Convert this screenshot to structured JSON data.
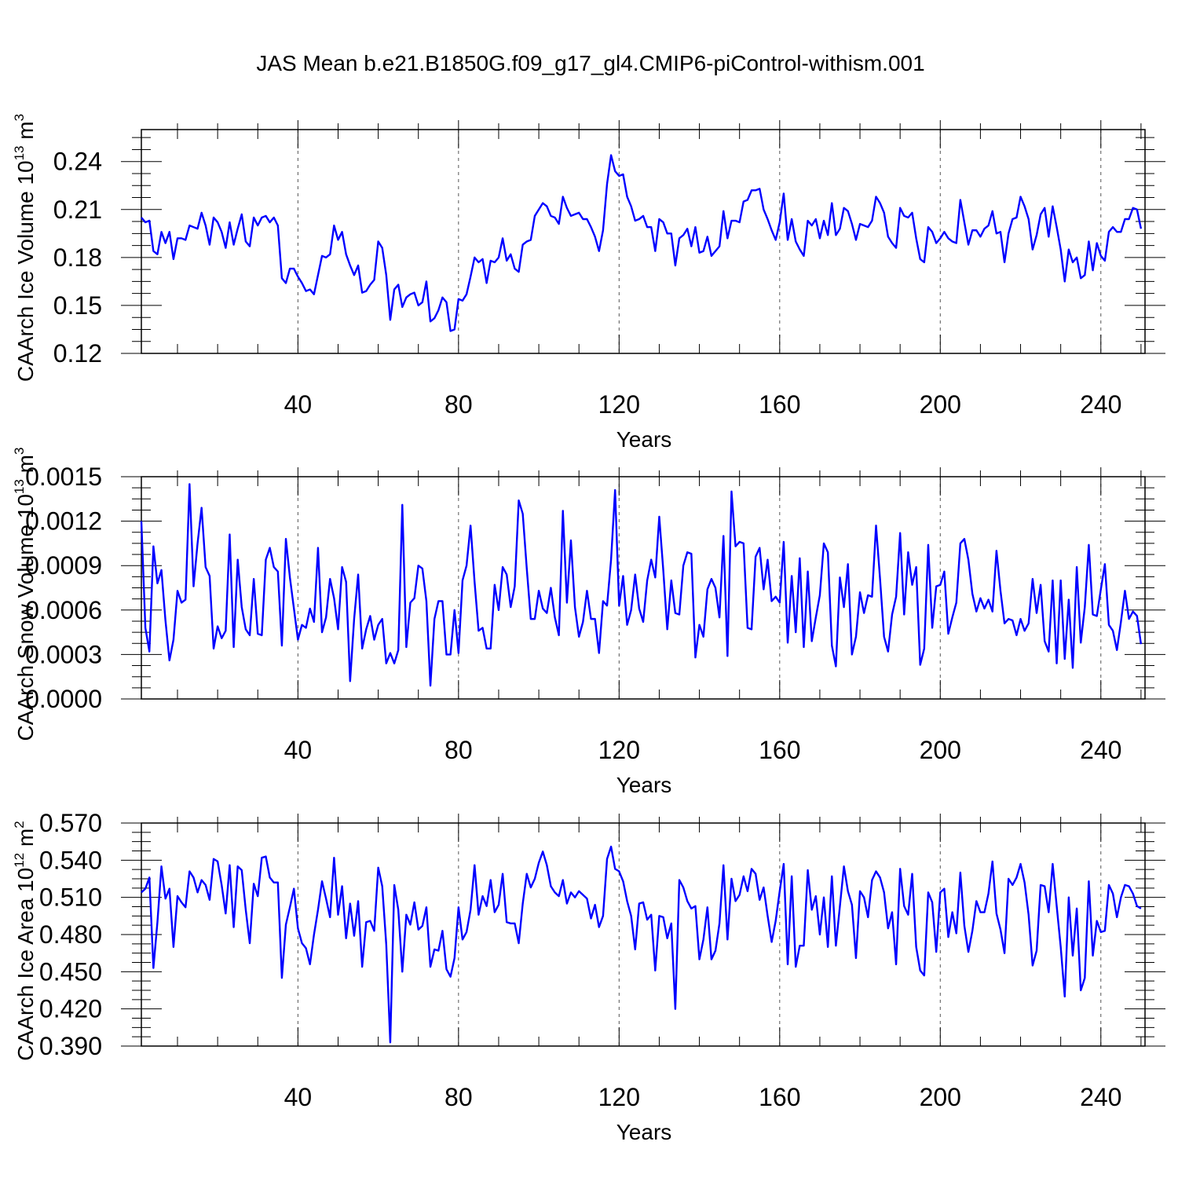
{
  "figure": {
    "title": "JAS Mean b.e21.B1850G.f09_g17_gl4.CMIP6-piControl-withism.001"
  },
  "chart_data": [
    {
      "type": "line",
      "xlabel": "Years",
      "ylabel": {
        "main": "CAArch Ice Volume 10",
        "exp": "13",
        "unit": " m",
        "unit_exp": "3"
      },
      "xlim": [
        1,
        251
      ],
      "xticks": [
        40,
        80,
        120,
        160,
        200,
        240
      ],
      "xtick_labels": [
        "40",
        "80",
        "120",
        "160",
        "200",
        "240"
      ],
      "ylim": [
        0.12,
        0.26
      ],
      "yticks": [
        0.12,
        0.15,
        0.18,
        0.21,
        0.24
      ],
      "ytick_labels": [
        "0.12",
        "0.15",
        "0.18",
        "0.21",
        "0.24"
      ],
      "grid": "vertical dashed at major x ticks",
      "color": "#0000ff",
      "series": [
        {
          "values": [
            0.205,
            0.202,
            0.203,
            0.184,
            0.182,
            0.196,
            0.189,
            0.196,
            0.179,
            0.192,
            0.192,
            0.191,
            0.2,
            0.199,
            0.198,
            0.208,
            0.2,
            0.188,
            0.205,
            0.202,
            0.196,
            0.186,
            0.202,
            0.188,
            0.198,
            0.207,
            0.19,
            0.187,
            0.205,
            0.2,
            0.205,
            0.206,
            0.202,
            0.205,
            0.2,
            0.167,
            0.164,
            0.173,
            0.173,
            0.168,
            0.164,
            0.159,
            0.16,
            0.157,
            0.169,
            0.181,
            0.18,
            0.182,
            0.2,
            0.191,
            0.196,
            0.182,
            0.175,
            0.169,
            0.175,
            0.158,
            0.159,
            0.163,
            0.166,
            0.19,
            0.186,
            0.169,
            0.141,
            0.16,
            0.163,
            0.149,
            0.155,
            0.157,
            0.158,
            0.15,
            0.152,
            0.165,
            0.14,
            0.142,
            0.147,
            0.155,
            0.152,
            0.134,
            0.135,
            0.154,
            0.153,
            0.157,
            0.168,
            0.18,
            0.177,
            0.179,
            0.164,
            0.178,
            0.177,
            0.18,
            0.192,
            0.178,
            0.182,
            0.173,
            0.171,
            0.188,
            0.19,
            0.191,
            0.206,
            0.21,
            0.214,
            0.212,
            0.206,
            0.205,
            0.201,
            0.218,
            0.211,
            0.206,
            0.207,
            0.208,
            0.204,
            0.204,
            0.199,
            0.193,
            0.184,
            0.197,
            0.226,
            0.244,
            0.234,
            0.231,
            0.232,
            0.218,
            0.212,
            0.203,
            0.204,
            0.206,
            0.199,
            0.199,
            0.184,
            0.204,
            0.202,
            0.195,
            0.195,
            0.175,
            0.192,
            0.194,
            0.198,
            0.187,
            0.199,
            0.183,
            0.184,
            0.193,
            0.181,
            0.184,
            0.187,
            0.209,
            0.192,
            0.203,
            0.203,
            0.202,
            0.215,
            0.216,
            0.222,
            0.222,
            0.223,
            0.21,
            0.204,
            0.197,
            0.191,
            0.202,
            0.22,
            0.191,
            0.204,
            0.19,
            0.185,
            0.181,
            0.203,
            0.2,
            0.204,
            0.192,
            0.203,
            0.194,
            0.214,
            0.194,
            0.198,
            0.211,
            0.209,
            0.201,
            0.191,
            0.201,
            0.2,
            0.199,
            0.203,
            0.218,
            0.214,
            0.208,
            0.193,
            0.189,
            0.186,
            0.211,
            0.206,
            0.205,
            0.208,
            0.192,
            0.179,
            0.177,
            0.199,
            0.196,
            0.189,
            0.192,
            0.196,
            0.192,
            0.19,
            0.189,
            0.216,
            0.202,
            0.188,
            0.197,
            0.197,
            0.193,
            0.198,
            0.2,
            0.209,
            0.195,
            0.196,
            0.177,
            0.195,
            0.204,
            0.205,
            0.218,
            0.212,
            0.204,
            0.185,
            0.194,
            0.207,
            0.211,
            0.193,
            0.212,
            0.199,
            0.185,
            0.165,
            0.185,
            0.177,
            0.18,
            0.167,
            0.169,
            0.19,
            0.172,
            0.189,
            0.181,
            0.178,
            0.196,
            0.199,
            0.196,
            0.196,
            0.204,
            0.204,
            0.211,
            0.21,
            0.198
          ]
        }
      ]
    },
    {
      "type": "line",
      "xlabel": "Years",
      "ylabel": {
        "main": "CAArch Snow Volume 10",
        "exp": "13",
        "unit": " m",
        "unit_exp": "3"
      },
      "xlim": [
        1,
        251
      ],
      "xticks": [
        40,
        80,
        120,
        160,
        200,
        240
      ],
      "xtick_labels": [
        "40",
        "80",
        "120",
        "160",
        "200",
        "240"
      ],
      "ylim": [
        0.0,
        0.0015
      ],
      "yticks": [
        0.0,
        0.0003,
        0.0006,
        0.0009,
        0.0012,
        0.0015
      ],
      "ytick_labels": [
        "0.0000",
        "0.0003",
        "0.0006",
        "0.0009",
        "0.0012",
        "0.0015"
      ],
      "grid": "vertical dashed at major x ticks",
      "color": "#0000ff",
      "series": [
        {
          "values": [
            0.0012,
            0.00048,
            0.00032,
            0.00103,
            0.00078,
            0.00087,
            0.00053,
            0.00026,
            0.0004,
            0.00073,
            0.00065,
            0.00067,
            0.00145,
            0.00076,
            0.00105,
            0.00129,
            0.00089,
            0.00083,
            0.00034,
            0.00049,
            0.00041,
            0.00046,
            0.00111,
            0.00035,
            0.00094,
            0.00062,
            0.00047,
            0.00043,
            0.00081,
            0.00044,
            0.00043,
            0.00094,
            0.00102,
            0.00089,
            0.00086,
            0.00036,
            0.00108,
            0.00082,
            0.00061,
            0.0004,
            0.0005,
            0.00048,
            0.00061,
            0.00052,
            0.00102,
            0.00045,
            0.00055,
            0.00081,
            0.00068,
            0.00047,
            0.00089,
            0.00079,
            0.00012,
            0.00054,
            0.00084,
            0.00034,
            0.00047,
            0.00056,
            0.0004,
            0.0005,
            0.00054,
            0.00024,
            0.00031,
            0.00024,
            0.00033,
            0.00131,
            0.00035,
            0.00065,
            0.00068,
            0.0009,
            0.00088,
            0.00066,
            9e-05,
            0.00054,
            0.00066,
            0.00066,
            0.0003,
            0.0003,
            0.0006,
            0.00031,
            0.0008,
            0.0009,
            0.00117,
            0.00079,
            0.00046,
            0.00048,
            0.00034,
            0.00034,
            0.00077,
            0.0006,
            0.00089,
            0.00084,
            0.00062,
            0.00076,
            0.00134,
            0.00125,
            0.00088,
            0.00054,
            0.00054,
            0.00073,
            0.00061,
            0.00058,
            0.00075,
            0.00055,
            0.00043,
            0.00127,
            0.00065,
            0.00107,
            0.00062,
            0.00042,
            0.00052,
            0.00073,
            0.00054,
            0.00054,
            0.00031,
            0.00066,
            0.00063,
            0.00094,
            0.00141,
            0.00063,
            0.00083,
            0.0005,
            0.0006,
            0.00084,
            0.00061,
            0.00052,
            0.0008,
            0.00094,
            0.00082,
            0.00123,
            0.00087,
            0.00047,
            0.0008,
            0.00058,
            0.00057,
            0.0009,
            0.00099,
            0.00098,
            0.00028,
            0.0005,
            0.00042,
            0.00074,
            0.00081,
            0.00075,
            0.00055,
            0.0011,
            0.00029,
            0.0014,
            0.00103,
            0.00106,
            0.00105,
            0.00048,
            0.00047,
            0.00096,
            0.00102,
            0.00074,
            0.00094,
            0.00066,
            0.00069,
            0.00065,
            0.00106,
            0.00038,
            0.00083,
            0.00045,
            0.00095,
            0.00035,
            0.00086,
            0.00039,
            0.00055,
            0.0007,
            0.00105,
            0.00099,
            0.00036,
            0.00022,
            0.00082,
            0.00062,
            0.00091,
            0.0003,
            0.00042,
            0.00072,
            0.00058,
            0.0007,
            0.00069,
            0.00117,
            0.00081,
            0.00042,
            0.00032,
            0.00057,
            0.00069,
            0.00112,
            0.00057,
            0.00099,
            0.00077,
            0.00089,
            0.00023,
            0.00034,
            0.00104,
            0.00048,
            0.00076,
            0.00077,
            0.00086,
            0.00044,
            0.00055,
            0.00065,
            0.00105,
            0.00108,
            0.00094,
            0.00071,
            0.00059,
            0.00068,
            0.00061,
            0.00067,
            0.00059,
            0.001,
            0.00073,
            0.00051,
            0.00054,
            0.00053,
            0.00043,
            0.00054,
            0.00046,
            0.00051,
            0.00081,
            0.00058,
            0.00077,
            0.00039,
            0.00032,
            0.0008,
            0.00024,
            0.0008,
            0.00027,
            0.00067,
            0.00021,
            0.00089,
            0.00038,
            0.00062,
            0.00104,
            0.00057,
            0.00056,
            0.00074,
            0.00091,
            0.0005,
            0.00046,
            0.00033,
            0.00052,
            0.00073,
            0.00054,
            0.00059,
            0.00056,
            0.00037
          ]
        }
      ]
    },
    {
      "type": "line",
      "xlabel": "Years",
      "ylabel": {
        "main": "CAArch Ice Area 10",
        "exp": "12",
        "unit": " m",
        "unit_exp": "2"
      },
      "xlim": [
        1,
        251
      ],
      "xticks": [
        40,
        80,
        120,
        160,
        200,
        240
      ],
      "xtick_labels": [
        "40",
        "80",
        "120",
        "160",
        "200",
        "240"
      ],
      "ylim": [
        0.39,
        0.57
      ],
      "yticks": [
        0.39,
        0.42,
        0.45,
        0.48,
        0.51,
        0.54,
        0.57
      ],
      "ytick_labels": [
        "0.390",
        "0.420",
        "0.450",
        "0.480",
        "0.510",
        "0.540",
        "0.570"
      ],
      "grid": "vertical dashed at major x ticks",
      "color": "#0000ff",
      "series": [
        {
          "values": [
            0.514,
            0.517,
            0.526,
            0.453,
            0.49,
            0.535,
            0.509,
            0.517,
            0.47,
            0.511,
            0.506,
            0.502,
            0.531,
            0.526,
            0.514,
            0.524,
            0.52,
            0.508,
            0.541,
            0.539,
            0.52,
            0.497,
            0.536,
            0.486,
            0.535,
            0.532,
            0.5,
            0.473,
            0.521,
            0.511,
            0.542,
            0.543,
            0.526,
            0.522,
            0.522,
            0.445,
            0.488,
            0.502,
            0.517,
            0.485,
            0.473,
            0.469,
            0.456,
            0.48,
            0.5,
            0.523,
            0.509,
            0.494,
            0.542,
            0.496,
            0.519,
            0.477,
            0.505,
            0.479,
            0.507,
            0.454,
            0.49,
            0.491,
            0.483,
            0.534,
            0.519,
            0.472,
            0.393,
            0.52,
            0.5,
            0.45,
            0.496,
            0.488,
            0.506,
            0.484,
            0.487,
            0.502,
            0.454,
            0.468,
            0.467,
            0.483,
            0.452,
            0.446,
            0.461,
            0.502,
            0.476,
            0.482,
            0.5,
            0.536,
            0.496,
            0.511,
            0.503,
            0.524,
            0.498,
            0.504,
            0.529,
            0.49,
            0.489,
            0.489,
            0.473,
            0.505,
            0.529,
            0.518,
            0.525,
            0.538,
            0.547,
            0.536,
            0.519,
            0.514,
            0.511,
            0.524,
            0.505,
            0.514,
            0.51,
            0.515,
            0.512,
            0.509,
            0.493,
            0.504,
            0.486,
            0.495,
            0.541,
            0.551,
            0.533,
            0.531,
            0.523,
            0.507,
            0.495,
            0.468,
            0.505,
            0.506,
            0.492,
            0.496,
            0.451,
            0.495,
            0.494,
            0.477,
            0.489,
            0.42,
            0.524,
            0.518,
            0.507,
            0.501,
            0.503,
            0.46,
            0.476,
            0.502,
            0.46,
            0.467,
            0.489,
            0.536,
            0.476,
            0.525,
            0.507,
            0.512,
            0.527,
            0.515,
            0.533,
            0.529,
            0.508,
            0.518,
            0.495,
            0.474,
            0.491,
            0.515,
            0.537,
            0.456,
            0.527,
            0.454,
            0.471,
            0.471,
            0.532,
            0.5,
            0.511,
            0.48,
            0.51,
            0.47,
            0.527,
            0.471,
            0.503,
            0.535,
            0.515,
            0.504,
            0.461,
            0.515,
            0.51,
            0.494,
            0.524,
            0.531,
            0.526,
            0.514,
            0.485,
            0.498,
            0.456,
            0.533,
            0.503,
            0.496,
            0.529,
            0.47,
            0.451,
            0.447,
            0.514,
            0.506,
            0.466,
            0.514,
            0.517,
            0.478,
            0.498,
            0.481,
            0.53,
            0.487,
            0.466,
            0.483,
            0.507,
            0.498,
            0.498,
            0.513,
            0.539,
            0.497,
            0.484,
            0.465,
            0.525,
            0.52,
            0.526,
            0.537,
            0.522,
            0.496,
            0.455,
            0.467,
            0.52,
            0.519,
            0.498,
            0.537,
            0.503,
            0.47,
            0.43,
            0.51,
            0.463,
            0.501,
            0.435,
            0.445,
            0.523,
            0.463,
            0.491,
            0.482,
            0.483,
            0.52,
            0.513,
            0.494,
            0.51,
            0.52,
            0.519,
            0.513,
            0.503,
            0.501
          ]
        }
      ]
    }
  ]
}
